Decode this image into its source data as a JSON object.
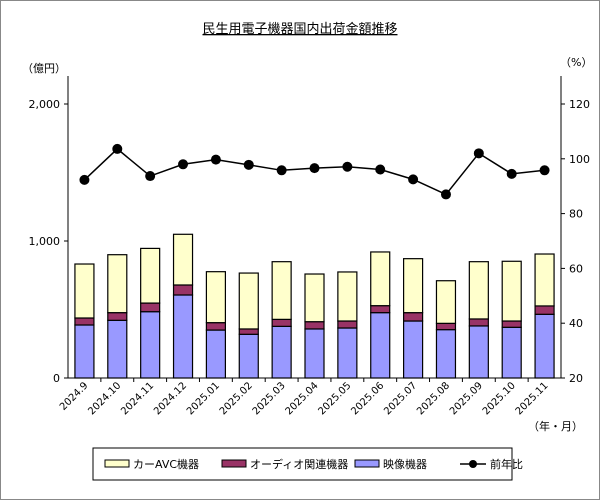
{
  "chart_data": {
    "type": "bar+line",
    "title": "民生用電子機器国内出荷金額推移",
    "y_left_label": "（億円）",
    "y_right_label": "（%）",
    "x_unit_label": "（年・月）",
    "y_left_range": [
      0,
      2000
    ],
    "y_left_ticks": [
      "0",
      "1,000",
      "2,000"
    ],
    "y_right_range": [
      20,
      120
    ],
    "y_right_ticks": [
      "20",
      "40",
      "60",
      "80",
      "100",
      "120"
    ],
    "categories": [
      "2024.9",
      "2024.10",
      "2024.11",
      "2024.12",
      "2025.01",
      "2025.02",
      "2025.03",
      "2025.04",
      "2025.05",
      "2025.06",
      "2025.07",
      "2025.08",
      "2025.09",
      "2025.10",
      "2025.11"
    ],
    "series": [
      {
        "name": "映像機器",
        "type": "bar",
        "color": "#9999ff",
        "values": [
          387,
          421,
          484,
          606,
          350,
          319,
          377,
          358,
          365,
          477,
          416,
          353,
          380,
          370,
          465
        ]
      },
      {
        "name": "オーディオ関連機器",
        "type": "bar",
        "color": "#993366",
        "values": [
          51,
          56,
          63,
          73,
          54,
          39,
          51,
          53,
          51,
          51,
          61,
          46,
          51,
          46,
          61
        ]
      },
      {
        "name": "カーAVC機器",
        "type": "bar",
        "color": "#ffffcc",
        "values": [
          394,
          423,
          399,
          370,
          372,
          408,
          421,
          348,
          358,
          392,
          394,
          311,
          418,
          436,
          379
        ]
      },
      {
        "name": "前年比",
        "type": "line",
        "axis": "right",
        "color": "#000000",
        "values": [
          92.3,
          103.6,
          93.7,
          98.0,
          99.7,
          97.8,
          95.8,
          96.6,
          97.1,
          96.1,
          92.5,
          87.0,
          102.0,
          94.5,
          95.8
        ]
      }
    ],
    "legend_order": [
      "カーAVC機器",
      "オーディオ関連機器",
      "映像機器",
      "前年比"
    ],
    "legend_position": "bottom",
    "grid": false
  }
}
